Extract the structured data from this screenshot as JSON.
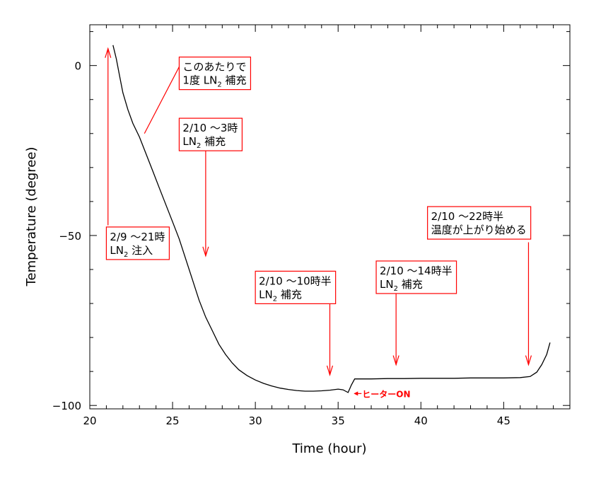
{
  "chart_data": {
    "type": "line",
    "title": "",
    "xlabel": "Time (hour)",
    "ylabel": "Temperature (degree)",
    "xlim": [
      20,
      49
    ],
    "ylim": [
      -101,
      12
    ],
    "x_ticks": [
      20,
      25,
      30,
      35,
      40,
      45
    ],
    "y_ticks": [
      0,
      -50,
      -100
    ],
    "grid": false,
    "line_color": "#000000",
    "annotation_color": "#ff0000",
    "series": [
      {
        "x": [
          21.4,
          21.6,
          21.8,
          22.0,
          22.3,
          22.6,
          23.0,
          23.4,
          23.8,
          24.2,
          24.6,
          25.0,
          25.4,
          25.8,
          26.2,
          26.6,
          27.0,
          27.4,
          27.8,
          28.2,
          28.6,
          29.0,
          29.5,
          30.0,
          30.5,
          31.0,
          31.5,
          32.0,
          32.5,
          33.0,
          33.5,
          34.0,
          34.5,
          35.0,
          35.3,
          35.6,
          35.8,
          36.0,
          37.0,
          38.0,
          39.0,
          40.0,
          41.0,
          42.0,
          43.0,
          44.0,
          45.0,
          46.0,
          46.6,
          47.0,
          47.3,
          47.6,
          47.8
        ],
        "y": [
          6,
          2,
          -3,
          -8,
          -13,
          -17,
          -21,
          -26,
          -31,
          -36,
          -41,
          -46,
          -51,
          -57,
          -63,
          -69,
          -74,
          -78,
          -82,
          -85,
          -87.5,
          -89.5,
          -91.2,
          -92.5,
          -93.5,
          -94.3,
          -94.9,
          -95.3,
          -95.6,
          -95.8,
          -95.8,
          -95.7,
          -95.5,
          -95.2,
          -95.4,
          -96.2,
          -94,
          -92.2,
          -92.2,
          -92.1,
          -92.1,
          -92.0,
          -92.0,
          -92.0,
          -91.9,
          -91.9,
          -91.9,
          -91.8,
          -91.5,
          -90.2,
          -88,
          -85,
          -81.5
        ]
      }
    ],
    "annotations": [
      {
        "lines": [
          "2/9 〜21時",
          "LN|2| 注入"
        ],
        "arrow_x": 21.1,
        "arrow_from_y": -47,
        "arrow_to_y": 5,
        "box_x": 21.0,
        "box_y": -47.5
      },
      {
        "lines": [
          "このあたりで",
          "1度 LN|2| 補充"
        ],
        "pointer_from": [
          25.6,
          1.5
        ],
        "pointer_to": [
          23.3,
          -20
        ],
        "box_x": 25.4,
        "box_y": 2.5
      },
      {
        "lines": [
          "2/10 〜3時",
          "LN|2| 補充"
        ],
        "arrow_x": 27.0,
        "arrow_from_y": -25,
        "arrow_to_y": -56,
        "box_x": 25.4,
        "box_y": -15.5
      },
      {
        "lines": [
          "2/10 〜10時半",
          "LN|2| 補充"
        ],
        "arrow_x": 34.5,
        "arrow_from_y": -70,
        "arrow_to_y": -91,
        "box_x": 30.0,
        "box_y": -60.5
      },
      {
        "lines": [
          "2/10 〜14時半",
          "LN|2| 補充"
        ],
        "arrow_x": 38.5,
        "arrow_from_y": -66,
        "arrow_to_y": -88,
        "box_x": 37.3,
        "box_y": -57.5
      },
      {
        "lines": [
          "2/10 〜22時半",
          "温度が上がり始める"
        ],
        "arrow_x": 46.5,
        "arrow_from_y": -52,
        "arrow_to_y": -88,
        "box_x": 40.4,
        "box_y": -41.5
      }
    ],
    "heater_label": "ヒーターON",
    "heater_arrow_tip": [
      35.9,
      -96.5
    ]
  }
}
